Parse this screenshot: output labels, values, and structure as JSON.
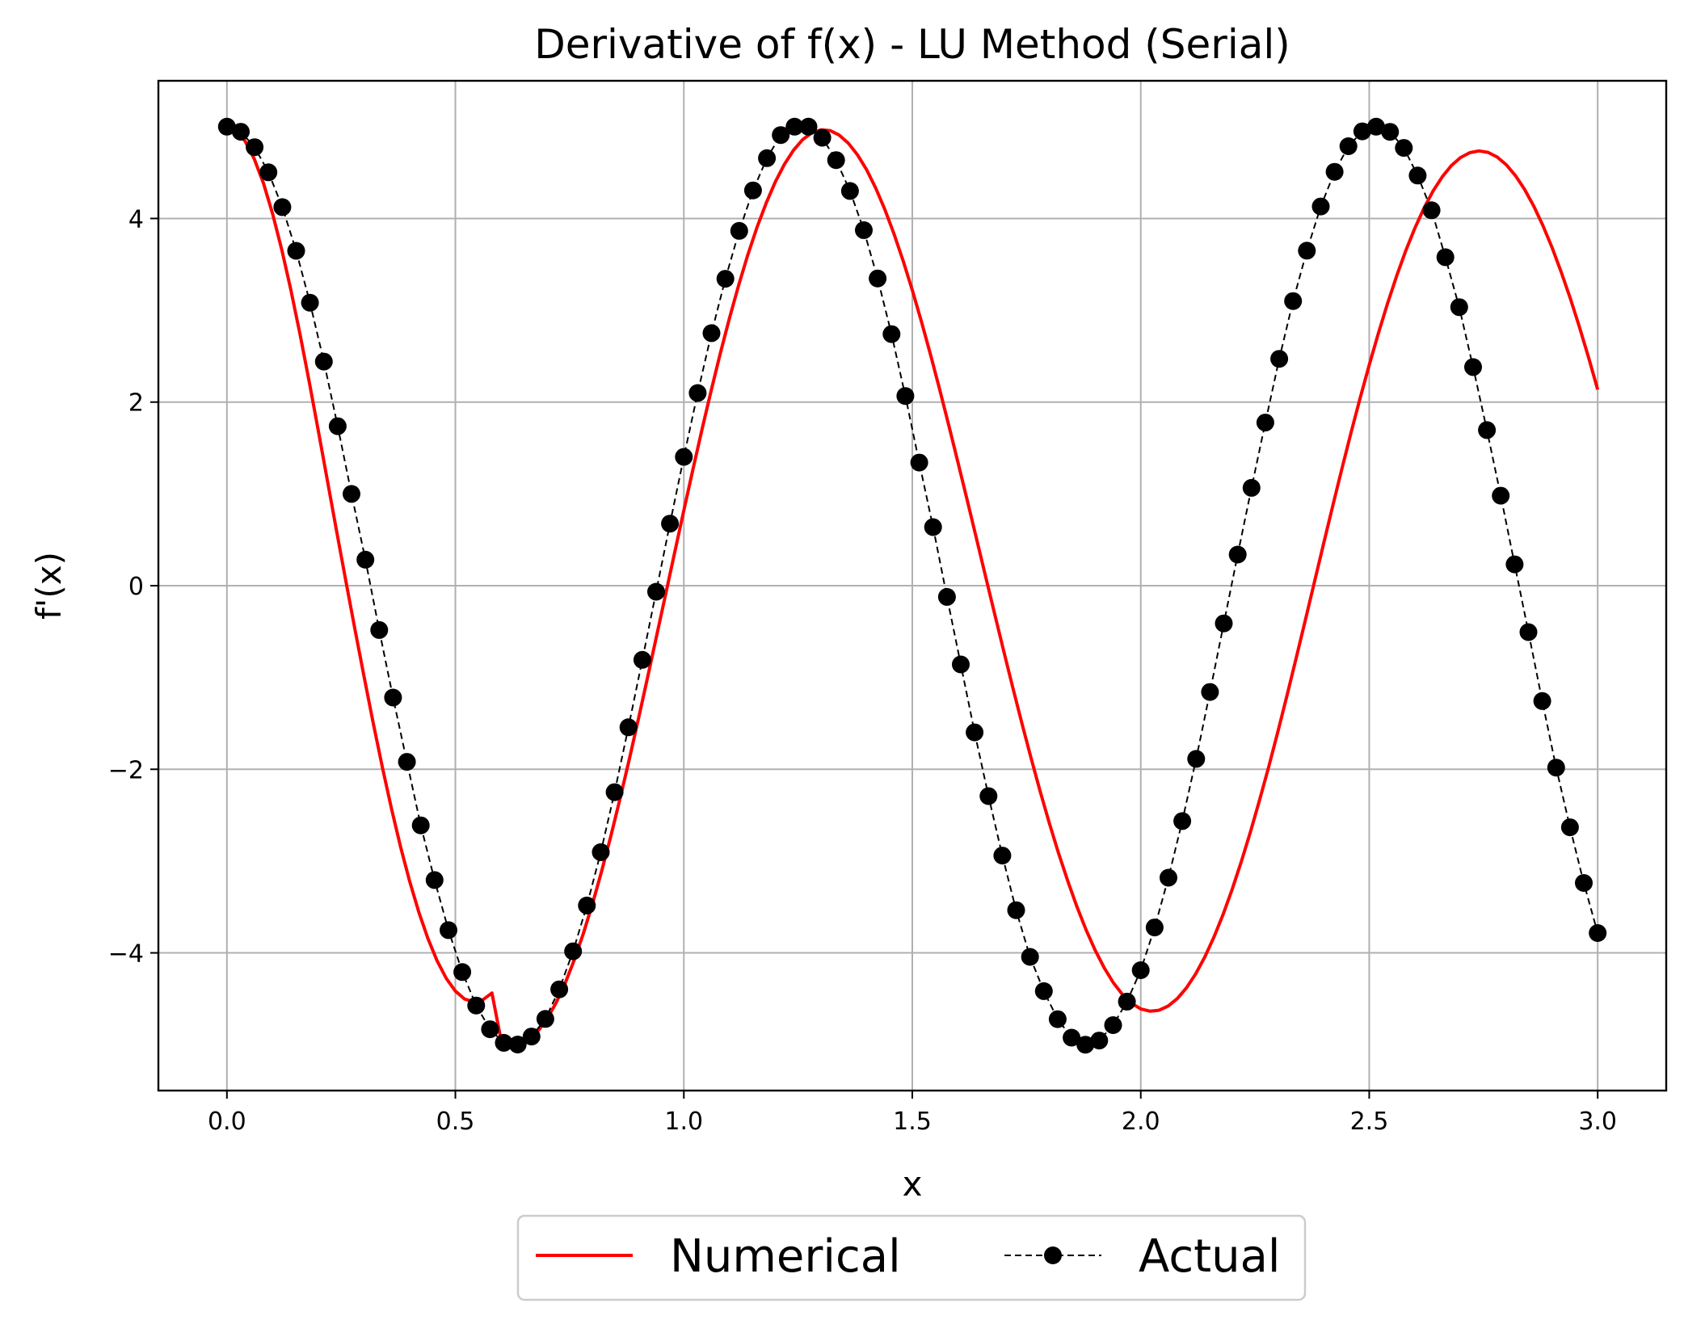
{
  "chart_data": {
    "type": "line",
    "title": "Derivative of f(x) - LU Method (Serial)",
    "xlabel": "x",
    "ylabel": "f'(x)",
    "xlim": [
      -0.15,
      3.15
    ],
    "ylim": [
      -5.5,
      5.5
    ],
    "xticks": [
      0.0,
      0.5,
      1.0,
      1.5,
      2.0,
      2.5,
      3.0
    ],
    "xtick_labels": [
      "0.0",
      "0.5",
      "1.0",
      "1.5",
      "2.0",
      "2.5",
      "3.0"
    ],
    "yticks": [
      -4,
      -2,
      0,
      2,
      4
    ],
    "ytick_labels": [
      "−4",
      "−2",
      "0",
      "2",
      "4"
    ],
    "grid": true,
    "legend_position": "bottom-center",
    "series": [
      {
        "name": "Numerical",
        "style": "solid",
        "color": "#ff0000",
        "x": [
          0.0,
          0.02,
          0.04,
          0.06,
          0.08,
          0.1,
          0.12,
          0.14,
          0.16,
          0.18,
          0.2,
          0.22,
          0.24,
          0.26,
          0.28,
          0.3,
          0.32,
          0.34,
          0.36,
          0.38,
          0.4,
          0.42,
          0.44,
          0.46,
          0.48,
          0.5,
          0.52,
          0.54,
          0.56,
          0.58,
          0.6,
          0.62,
          0.64,
          0.66,
          0.68,
          0.7,
          0.72,
          0.74,
          0.76,
          0.78,
          0.8,
          0.82,
          0.84,
          0.86,
          0.88,
          0.9,
          0.92,
          0.94,
          0.96,
          0.98,
          1.0,
          1.02,
          1.04,
          1.06,
          1.08,
          1.1,
          1.12,
          1.14,
          1.16,
          1.18,
          1.2,
          1.22,
          1.24,
          1.26,
          1.28,
          1.3,
          1.32,
          1.34,
          1.36,
          1.38,
          1.4,
          1.42,
          1.44,
          1.46,
          1.48,
          1.5,
          1.52,
          1.54,
          1.56,
          1.58,
          1.6,
          1.62,
          1.64,
          1.66,
          1.68,
          1.7,
          1.72,
          1.74,
          1.76,
          1.78,
          1.8,
          1.82,
          1.84,
          1.86,
          1.88,
          1.9,
          1.92,
          1.94,
          1.96,
          1.98,
          2.0,
          2.02,
          2.04,
          2.06,
          2.08,
          2.1,
          2.12,
          2.14,
          2.16,
          2.18,
          2.2,
          2.22,
          2.24,
          2.26,
          2.28,
          2.3,
          2.32,
          2.34,
          2.36,
          2.38,
          2.4,
          2.42,
          2.44,
          2.46,
          2.48,
          2.5,
          2.52,
          2.54,
          2.56,
          2.58,
          2.6,
          2.62,
          2.64,
          2.66,
          2.68,
          2.7,
          2.72,
          2.74,
          2.76,
          2.78,
          2.8,
          2.82,
          2.84,
          2.86,
          2.88,
          2.9,
          2.92,
          2.94,
          2.96,
          2.98,
          3.0
        ],
        "y": [
          5.0,
          4.96,
          4.842,
          4.648,
          4.382,
          4.05,
          3.66,
          3.22,
          2.738,
          2.224,
          1.689,
          1.143,
          0.597,
          0.061,
          -0.469,
          -0.989,
          -1.493,
          -1.974,
          -2.426,
          -2.844,
          -3.222,
          -3.556,
          -3.845,
          -4.086,
          -4.277,
          -4.416,
          -4.502,
          -4.534,
          -4.512,
          -4.437,
          -4.951,
          -4.994,
          -4.992,
          -4.947,
          -4.858,
          -4.724,
          -4.549,
          -4.333,
          -4.079,
          -3.789,
          -3.466,
          -3.112,
          -2.732,
          -2.328,
          -1.905,
          -1.466,
          -1.015,
          -0.557,
          -0.096,
          0.364,
          0.821,
          1.27,
          1.708,
          2.13,
          2.534,
          2.916,
          3.273,
          3.603,
          3.901,
          4.166,
          4.397,
          4.59,
          4.744,
          4.859,
          4.933,
          4.965,
          4.958,
          4.909,
          4.821,
          4.694,
          4.53,
          4.33,
          4.096,
          3.831,
          3.538,
          3.219,
          2.877,
          2.515,
          2.137,
          1.745,
          1.343,
          0.934,
          0.521,
          0.107,
          -0.304,
          -0.711,
          -1.111,
          -1.501,
          -1.879,
          -2.242,
          -2.587,
          -2.912,
          -3.215,
          -3.494,
          -3.746,
          -3.97,
          -4.163,
          -4.325,
          -4.454,
          -4.549,
          -4.61,
          -4.635,
          -4.625,
          -4.579,
          -4.498,
          -4.381,
          -4.23,
          -4.046,
          -3.83,
          -3.584,
          -3.309,
          -3.008,
          -2.684,
          -2.337,
          -1.972,
          -1.591,
          -1.196,
          -0.791,
          -0.378,
          0.038,
          0.454,
          0.865,
          1.269,
          1.662,
          2.041,
          2.405,
          2.75,
          3.074,
          3.374,
          3.649,
          3.896,
          4.114,
          4.301,
          4.455,
          4.577,
          4.664,
          4.717,
          4.736,
          4.72,
          4.669,
          4.585,
          4.467,
          4.317,
          4.136,
          3.925,
          3.686,
          3.42,
          3.13,
          2.818,
          2.486,
          2.136
        ]
      },
      {
        "name": "Actual",
        "style": "dashed-markers",
        "color": "#000000",
        "marker": "circle",
        "x": [
          0.0,
          0.0303,
          0.0606,
          0.0909,
          0.1212,
          0.1515,
          0.1818,
          0.2121,
          0.2424,
          0.2727,
          0.303,
          0.3333,
          0.3636,
          0.3939,
          0.4242,
          0.4545,
          0.4848,
          0.5152,
          0.5455,
          0.5758,
          0.6061,
          0.6364,
          0.6667,
          0.697,
          0.7273,
          0.7576,
          0.7879,
          0.8182,
          0.8485,
          0.8788,
          0.9091,
          0.9394,
          0.9697,
          1.0,
          1.0303,
          1.0606,
          1.0909,
          1.1212,
          1.1515,
          1.1818,
          1.2121,
          1.2424,
          1.2727,
          1.303,
          1.3333,
          1.3636,
          1.3939,
          1.4242,
          1.4545,
          1.4848,
          1.5152,
          1.5455,
          1.5758,
          1.6061,
          1.6364,
          1.6667,
          1.697,
          1.7273,
          1.7576,
          1.7879,
          1.8182,
          1.8485,
          1.8788,
          1.9091,
          1.9394,
          1.9697,
          2.0,
          2.0303,
          2.0606,
          2.0909,
          2.1212,
          2.1515,
          2.1818,
          2.2121,
          2.2424,
          2.2727,
          2.303,
          2.3333,
          2.3636,
          2.3939,
          2.4242,
          2.4545,
          2.4848,
          2.5152,
          2.5455,
          2.5758,
          2.6061,
          2.6364,
          2.6667,
          2.697,
          2.7273,
          2.7576,
          2.7879,
          2.8182,
          2.8485,
          2.8788,
          2.9091,
          2.9394,
          2.9697,
          3.0
        ],
        "y": [
          5.0,
          4.945,
          4.777,
          4.503,
          4.124,
          3.648,
          3.083,
          2.441,
          1.737,
          1.0,
          0.283,
          -0.483,
          -1.219,
          -1.919,
          -2.611,
          -3.207,
          -3.752,
          -4.209,
          -4.573,
          -4.832,
          -4.98,
          -4.998,
          -4.911,
          -4.719,
          -4.397,
          -3.983,
          -3.484,
          -2.903,
          -2.249,
          -1.543,
          -0.808,
          -0.066,
          0.676,
          1.403,
          2.099,
          2.751,
          3.343,
          3.865,
          4.306,
          4.657,
          4.909,
          5.0,
          5.0,
          4.88,
          4.636,
          4.3,
          3.873,
          3.347,
          2.74,
          2.066,
          1.341,
          0.638,
          -0.122,
          -0.858,
          -1.598,
          -2.292,
          -2.94,
          -3.535,
          -4.044,
          -4.417,
          -4.722,
          -4.924,
          -5.0,
          -4.955,
          -4.787,
          -4.531,
          -4.189,
          -3.723,
          -3.181,
          -2.564,
          -1.887,
          -1.158,
          -0.411,
          0.339,
          1.066,
          1.777,
          2.471,
          3.1,
          3.649,
          4.131,
          4.508,
          4.787,
          4.949,
          5.0,
          4.944,
          4.769,
          4.468,
          4.089,
          3.578,
          3.034,
          2.381,
          1.695,
          0.98,
          0.232,
          -0.506,
          -1.257,
          -1.982,
          -2.632,
          -3.238,
          -3.784
        ]
      }
    ],
    "legend": [
      {
        "label": "Numerical",
        "style": "solid",
        "color": "#ff0000"
      },
      {
        "label": "Actual",
        "style": "dashed-markers",
        "color": "#000000"
      }
    ]
  }
}
